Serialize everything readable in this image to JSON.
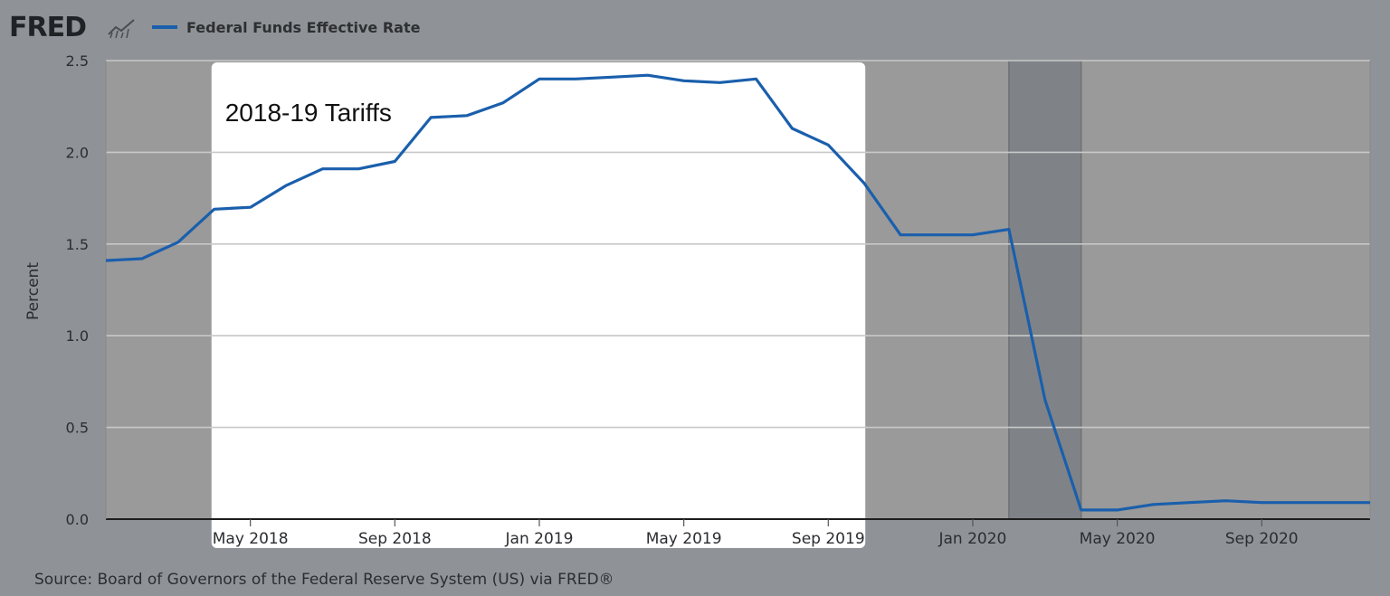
{
  "header": {
    "logo": "FRED",
    "logo_icon": "line-chart-icon",
    "legend_series": "Federal Funds Effective Rate"
  },
  "source": "Source: Board of Governors of the Federal Reserve System (US) via FRED®",
  "colors": {
    "background": "#8f9397",
    "plot_bg": "#9a9a9a",
    "highlight": "#ffffff",
    "recession": "#7f8388",
    "series": "#1a5fac",
    "grid": "#c8c8c8"
  },
  "chart_data": {
    "type": "line",
    "title": "",
    "xlabel": "",
    "ylabel": "Percent",
    "ylim": [
      0,
      2.5
    ],
    "yticks": [
      "0.0",
      "0.5",
      "1.0",
      "1.5",
      "2.0",
      "2.5"
    ],
    "xtick_labels": [
      "May 2018",
      "Sep 2018",
      "Jan 2019",
      "May 2019",
      "Sep 2019",
      "Jan 2020",
      "May 2020",
      "Sep 2020"
    ],
    "xtick_dates": [
      "2018-05",
      "2018-09",
      "2019-01",
      "2019-05",
      "2019-09",
      "2020-01",
      "2020-05",
      "2020-09"
    ],
    "xlim": [
      "2018-01",
      "2020-12"
    ],
    "grid": true,
    "legend": "top-left",
    "series": [
      {
        "name": "Federal Funds Effective Rate",
        "x": [
          "2018-01",
          "2018-02",
          "2018-03",
          "2018-04",
          "2018-05",
          "2018-06",
          "2018-07",
          "2018-08",
          "2018-09",
          "2018-10",
          "2018-11",
          "2018-12",
          "2019-01",
          "2019-02",
          "2019-03",
          "2019-04",
          "2019-05",
          "2019-06",
          "2019-07",
          "2019-08",
          "2019-09",
          "2019-10",
          "2019-11",
          "2019-12",
          "2020-01",
          "2020-02",
          "2020-03",
          "2020-04",
          "2020-05",
          "2020-06",
          "2020-07",
          "2020-08",
          "2020-09",
          "2020-10",
          "2020-11",
          "2020-12"
        ],
        "values": [
          1.41,
          1.42,
          1.51,
          1.69,
          1.7,
          1.82,
          1.91,
          1.91,
          1.95,
          2.19,
          2.2,
          2.27,
          2.4,
          2.4,
          2.41,
          2.42,
          2.39,
          2.38,
          2.4,
          2.13,
          2.04,
          1.83,
          1.55,
          1.55,
          1.55,
          1.58,
          0.65,
          0.05,
          0.05,
          0.08,
          0.09,
          0.1,
          0.09,
          0.09,
          0.09,
          0.09
        ]
      }
    ],
    "shaded_regions": [
      {
        "kind": "annotation",
        "start": "2018-04",
        "end": "2019-10",
        "label": "2018-19 Tariffs"
      },
      {
        "kind": "recession",
        "start": "2020-02",
        "end": "2020-04"
      }
    ]
  }
}
